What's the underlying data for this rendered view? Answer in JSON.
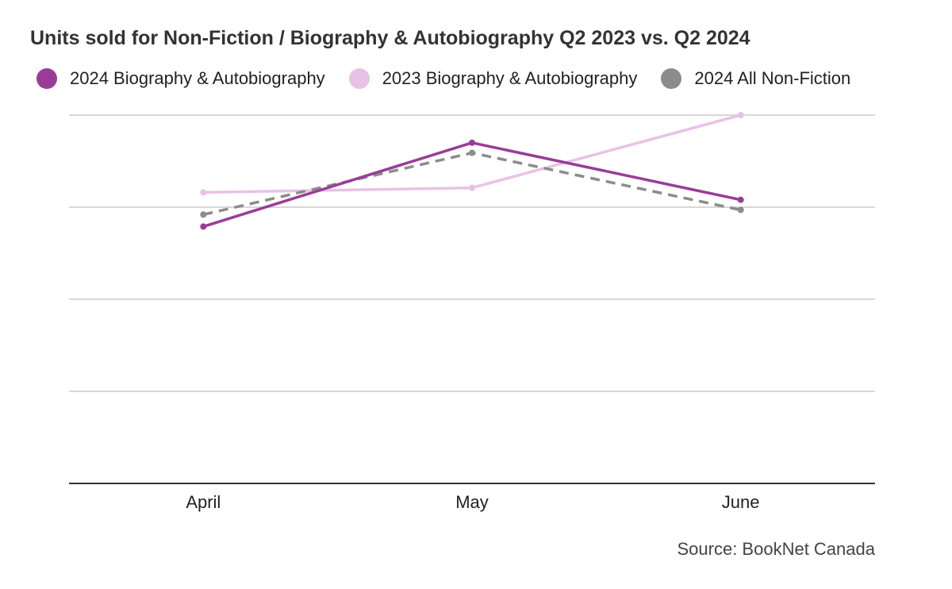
{
  "chart_data": {
    "type": "line",
    "title": "Units sold for Non-Fiction / Biography & Autobiography Q2 2023 vs. Q2 2024",
    "categories": [
      "April",
      "May",
      "June"
    ],
    "xlabel": "",
    "ylabel": "",
    "ylim": [
      0,
      4
    ],
    "grid": true,
    "y_tick_labels_shown": false,
    "legend_position": "top",
    "series": [
      {
        "name": "2024 Biography & Autobiography",
        "values": [
          2.79,
          3.7,
          3.08
        ],
        "color": "#9a3c97",
        "style": "solid"
      },
      {
        "name": "2023 Biography & Autobiography",
        "values": [
          3.16,
          3.21,
          4.0
        ],
        "color": "#e8c2e6",
        "style": "solid"
      },
      {
        "name": "2024 All Non-Fiction",
        "values": [
          2.92,
          3.59,
          2.97
        ],
        "color": "#8c8c8c",
        "style": "dashed"
      }
    ],
    "source": "Source: BookNet Canada"
  }
}
